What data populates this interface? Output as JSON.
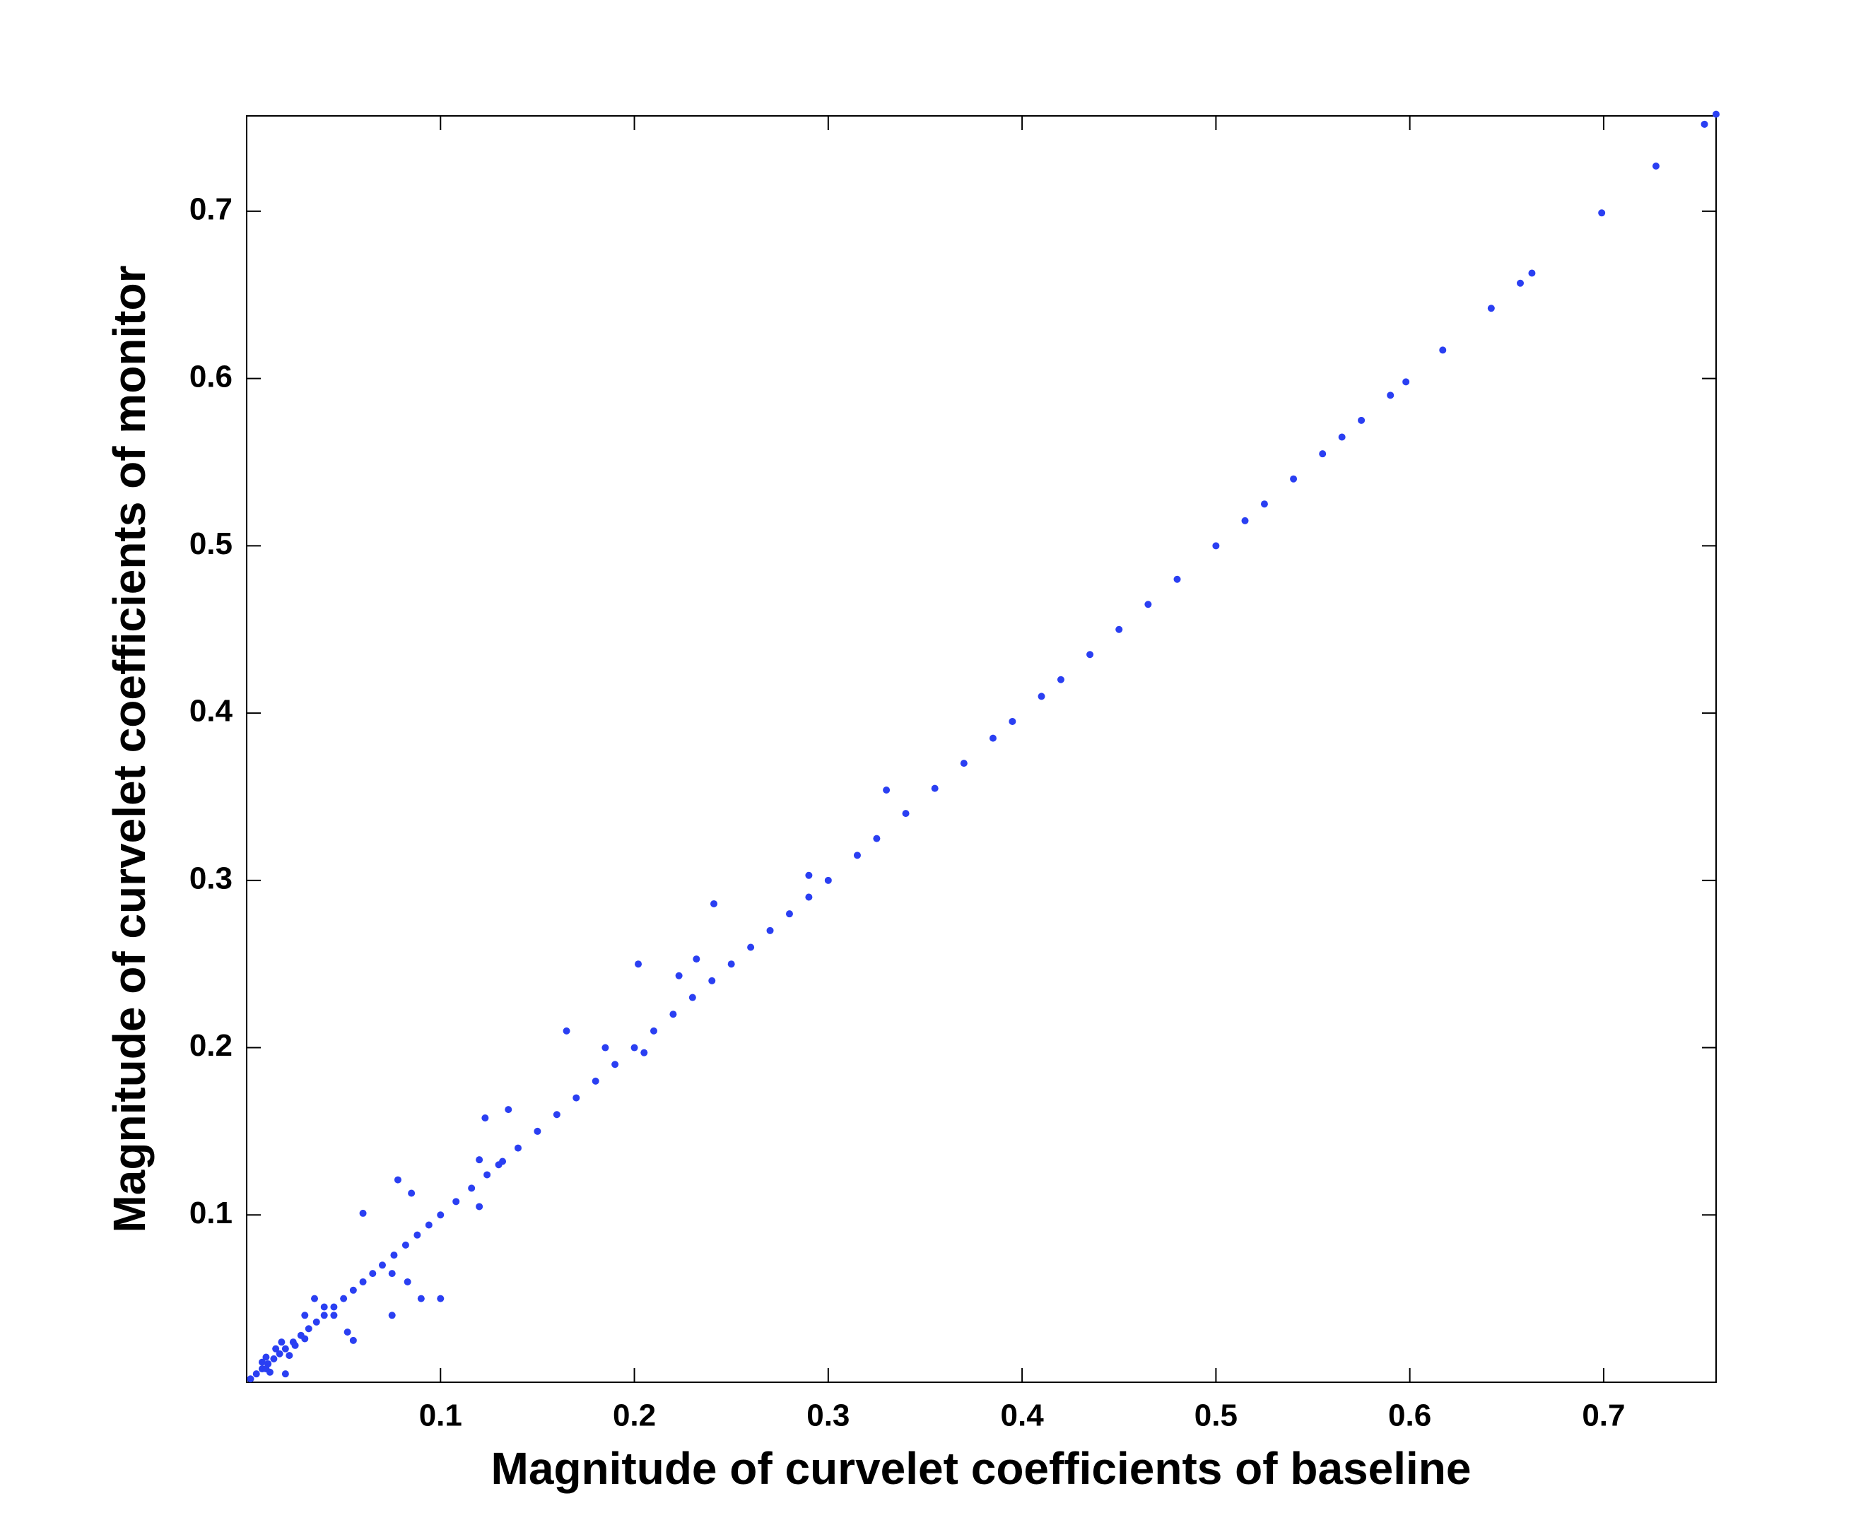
{
  "chart_data": {
    "type": "scatter",
    "xlabel": "Magnitude of curvelet coefficients of baseline",
    "ylabel": "Magnitude of curvelet coefficients of monitor",
    "color": "#2a3ff2",
    "xlim": [
      0,
      0.758
    ],
    "ylim": [
      0,
      0.757
    ],
    "xticks": [
      0.1,
      0.2,
      0.3,
      0.4,
      0.5,
      0.6,
      0.7
    ],
    "yticks": [
      0.1,
      0.2,
      0.3,
      0.4,
      0.5,
      0.6,
      0.7
    ],
    "x": [
      0.002,
      0.005,
      0.008,
      0.011,
      0.014,
      0.017,
      0.02,
      0.024,
      0.028,
      0.032,
      0.036,
      0.04,
      0.045,
      0.05,
      0.055,
      0.06,
      0.065,
      0.07,
      0.076,
      0.082,
      0.088,
      0.094,
      0.1,
      0.108,
      0.116,
      0.124,
      0.132,
      0.14,
      0.15,
      0.16,
      0.17,
      0.18,
      0.19,
      0.2,
      0.21,
      0.22,
      0.23,
      0.24,
      0.25,
      0.26,
      0.27,
      0.28,
      0.29,
      0.3,
      0.315,
      0.325,
      0.34,
      0.355,
      0.37,
      0.385,
      0.395,
      0.41,
      0.42,
      0.435,
      0.45,
      0.465,
      0.48,
      0.5,
      0.515,
      0.525,
      0.54,
      0.555,
      0.565,
      0.575,
      0.59,
      0.598,
      0.617,
      0.642,
      0.657,
      0.663,
      0.699,
      0.727,
      0.752,
      0.758,
      0.33,
      0.29,
      0.241,
      0.202,
      0.232,
      0.223,
      0.165,
      0.185,
      0.205,
      0.135,
      0.123,
      0.12,
      0.078,
      0.06,
      0.085,
      0.1,
      0.09,
      0.083,
      0.075,
      0.075,
      0.055,
      0.052,
      0.02,
      0.03,
      0.035,
      0.01,
      0.12,
      0.13,
      0.01,
      0.015,
      0.025,
      0.03,
      0.04,
      0.045,
      0.008,
      0.012,
      0.018,
      0.022
    ],
    "values": [
      0.002,
      0.005,
      0.008,
      0.011,
      0.014,
      0.017,
      0.02,
      0.024,
      0.028,
      0.032,
      0.036,
      0.04,
      0.045,
      0.05,
      0.055,
      0.06,
      0.065,
      0.07,
      0.076,
      0.082,
      0.088,
      0.094,
      0.1,
      0.108,
      0.116,
      0.124,
      0.132,
      0.14,
      0.15,
      0.16,
      0.17,
      0.18,
      0.19,
      0.2,
      0.21,
      0.22,
      0.23,
      0.24,
      0.25,
      0.26,
      0.27,
      0.28,
      0.29,
      0.3,
      0.315,
      0.325,
      0.34,
      0.355,
      0.37,
      0.385,
      0.395,
      0.41,
      0.42,
      0.435,
      0.45,
      0.465,
      0.48,
      0.5,
      0.515,
      0.525,
      0.54,
      0.555,
      0.565,
      0.575,
      0.59,
      0.598,
      0.617,
      0.642,
      0.657,
      0.663,
      0.699,
      0.727,
      0.752,
      0.758,
      0.354,
      0.303,
      0.286,
      0.25,
      0.253,
      0.243,
      0.21,
      0.2,
      0.197,
      0.163,
      0.158,
      0.133,
      0.121,
      0.101,
      0.113,
      0.05,
      0.05,
      0.06,
      0.065,
      0.04,
      0.025,
      0.03,
      0.005,
      0.04,
      0.05,
      0.015,
      0.105,
      0.13,
      0.008,
      0.02,
      0.022,
      0.026,
      0.045,
      0.04,
      0.012,
      0.006,
      0.024,
      0.016
    ]
  }
}
